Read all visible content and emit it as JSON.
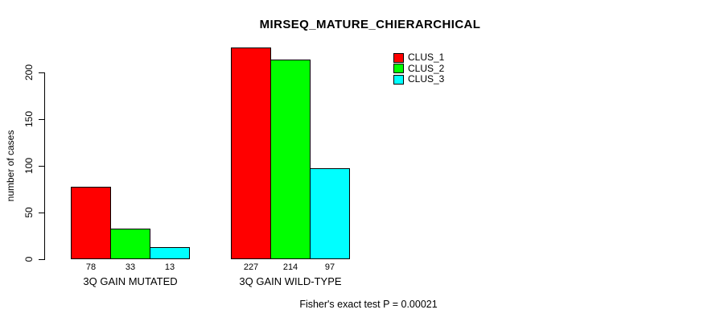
{
  "chart_data": {
    "type": "bar",
    "title": "MIRSEQ_MATURE_CHIERARCHICAL",
    "ylabel": "number of cases",
    "xlabel": "",
    "categories": [
      "3Q GAIN MUTATED",
      "3Q GAIN WILD-TYPE"
    ],
    "series": [
      {
        "name": "CLUS_1",
        "color": "#ff0000",
        "values": [
          78,
          227
        ]
      },
      {
        "name": "CLUS_2",
        "color": "#00ff00",
        "values": [
          33,
          214
        ]
      },
      {
        "name": "CLUS_3",
        "color": "#00ffff",
        "values": [
          13,
          97
        ]
      }
    ],
    "yticks": [
      0,
      50,
      100,
      150,
      200
    ],
    "ylim": [
      0,
      232
    ],
    "grid": false,
    "show_bar_values": true,
    "legend": {
      "position": "top-right",
      "entries": [
        "CLUS_1",
        "CLUS_2",
        "CLUS_3"
      ]
    },
    "annotation": "Fisher's exact test P = 0.00021"
  },
  "colors": {
    "background": "#ffffff",
    "axis": "#000000",
    "bar_border": "#000000",
    "clus_1": "#ff0000",
    "clus_2": "#00ff00",
    "clus_3": "#00ffff"
  }
}
